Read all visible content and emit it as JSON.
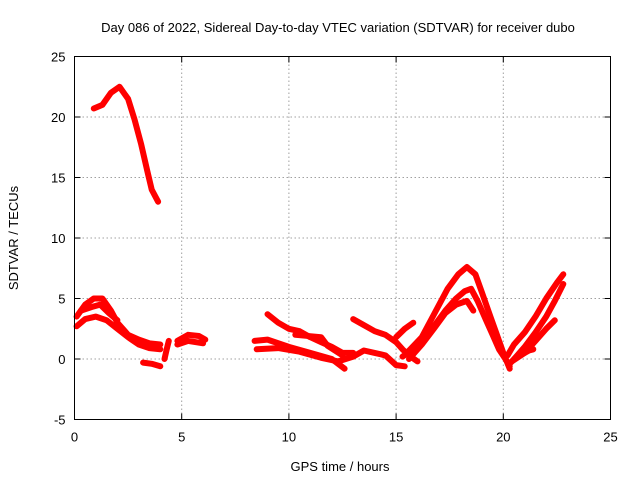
{
  "chart_data": {
    "type": "line",
    "title": "Day 086 of 2022, Sidereal Day-to-day VTEC variation (SDTVAR) for receiver dubo",
    "xlabel": "GPS time / hours",
    "ylabel": "SDTVAR / TECUs",
    "xlim": [
      0,
      25
    ],
    "ylim": [
      -5,
      25
    ],
    "xticks": [
      "0",
      "5",
      "10",
      "15",
      "20",
      "25"
    ],
    "yticks": [
      "-5",
      "0",
      "5",
      "10",
      "15",
      "20",
      "25"
    ],
    "grid": true,
    "series_color": "#ff0000",
    "series": [
      {
        "name": "seg-high-peak",
        "points": [
          [
            0.9,
            20.7
          ],
          [
            1.3,
            21.0
          ],
          [
            1.7,
            22.0
          ],
          [
            2.1,
            22.5
          ],
          [
            2.5,
            21.5
          ],
          [
            2.8,
            19.8
          ],
          [
            3.1,
            17.8
          ],
          [
            3.4,
            15.5
          ],
          [
            3.6,
            14.0
          ],
          [
            3.9,
            13.0
          ]
        ]
      },
      {
        "name": "seg-early-upper",
        "points": [
          [
            0.1,
            3.5
          ],
          [
            0.5,
            4.5
          ],
          [
            0.9,
            5.0
          ],
          [
            1.3,
            5.0
          ],
          [
            1.7,
            4.0
          ],
          [
            2.0,
            3.0
          ],
          [
            2.5,
            2.0
          ],
          [
            3.0,
            1.6
          ],
          [
            3.5,
            1.3
          ],
          [
            4.0,
            1.2
          ]
        ]
      },
      {
        "name": "seg-early-lower",
        "points": [
          [
            0.1,
            2.7
          ],
          [
            0.5,
            3.3
          ],
          [
            1.0,
            3.5
          ],
          [
            1.5,
            3.2
          ],
          [
            2.0,
            2.5
          ],
          [
            2.5,
            1.8
          ],
          [
            3.0,
            1.2
          ],
          [
            3.5,
            0.9
          ],
          [
            4.0,
            0.8
          ]
        ]
      },
      {
        "name": "seg-early-mid",
        "points": [
          [
            0.3,
            4.0
          ],
          [
            0.8,
            4.3
          ],
          [
            1.2,
            4.5
          ],
          [
            1.6,
            3.8
          ],
          [
            2.0,
            3.2
          ]
        ]
      },
      {
        "name": "seg-dip",
        "points": [
          [
            3.2,
            -0.3
          ],
          [
            3.6,
            -0.4
          ],
          [
            4.0,
            -0.6
          ]
        ]
      },
      {
        "name": "seg-rise",
        "points": [
          [
            4.2,
            0.0
          ],
          [
            4.3,
            0.8
          ],
          [
            4.4,
            1.5
          ]
        ]
      },
      {
        "name": "seg-mid",
        "points": [
          [
            4.8,
            1.5
          ],
          [
            5.3,
            2.0
          ],
          [
            5.8,
            1.9
          ],
          [
            6.1,
            1.6
          ]
        ]
      },
      {
        "name": "seg-mid2",
        "points": [
          [
            4.8,
            1.2
          ],
          [
            5.3,
            1.5
          ],
          [
            6.0,
            1.3
          ]
        ]
      },
      {
        "name": "seg-a",
        "points": [
          [
            8.4,
            1.5
          ],
          [
            9.0,
            1.6
          ],
          [
            10.0,
            1.0
          ],
          [
            11.0,
            0.5
          ],
          [
            12.0,
            0.0
          ],
          [
            12.6,
            -0.8
          ]
        ]
      },
      {
        "name": "seg-b",
        "points": [
          [
            8.5,
            0.8
          ],
          [
            9.5,
            0.9
          ],
          [
            10.5,
            0.6
          ],
          [
            11.5,
            0.1
          ],
          [
            12.3,
            -0.2
          ],
          [
            13.0,
            0.2
          ],
          [
            13.5,
            0.7
          ],
          [
            14.0,
            0.5
          ],
          [
            14.5,
            0.3
          ],
          [
            15.0,
            -0.5
          ],
          [
            15.4,
            -0.6
          ]
        ]
      },
      {
        "name": "seg-c",
        "points": [
          [
            9.0,
            3.7
          ],
          [
            9.5,
            3.0
          ],
          [
            10.0,
            2.5
          ],
          [
            10.5,
            2.3
          ],
          [
            11.0,
            1.8
          ],
          [
            11.5,
            1.4
          ],
          [
            12.0,
            1.0
          ],
          [
            12.5,
            0.5
          ],
          [
            13.0,
            0.5
          ]
        ]
      },
      {
        "name": "seg-d",
        "points": [
          [
            10.3,
            2.0
          ],
          [
            11.5,
            1.8
          ],
          [
            11.8,
            1.1
          ],
          [
            12.5,
            0.3
          ]
        ]
      },
      {
        "name": "seg-e",
        "points": [
          [
            13.0,
            3.3
          ],
          [
            13.5,
            2.8
          ],
          [
            14.0,
            2.3
          ],
          [
            14.5,
            2.0
          ],
          [
            15.0,
            1.4
          ],
          [
            15.3,
            0.8
          ],
          [
            15.6,
            0.3
          ],
          [
            16.0,
            -0.2
          ]
        ]
      },
      {
        "name": "seg-f",
        "points": [
          [
            15.0,
            1.8
          ],
          [
            15.4,
            2.5
          ],
          [
            15.8,
            3.0
          ]
        ]
      },
      {
        "name": "seg-g",
        "points": [
          [
            15.3,
            0.2
          ],
          [
            15.8,
            0.8
          ],
          [
            16.3,
            1.5
          ],
          [
            16.8,
            2.8
          ],
          [
            17.3,
            4.0
          ],
          [
            17.8,
            5.0
          ],
          [
            18.2,
            5.6
          ],
          [
            18.5,
            5.8
          ],
          [
            18.8,
            4.8
          ],
          [
            19.2,
            3.2
          ],
          [
            19.5,
            2.0
          ],
          [
            19.8,
            0.8
          ],
          [
            20.1,
            0.0
          ],
          [
            20.3,
            -0.6
          ]
        ]
      },
      {
        "name": "seg-h",
        "points": [
          [
            15.5,
            0.5
          ],
          [
            16.2,
            1.8
          ],
          [
            16.8,
            3.8
          ],
          [
            17.4,
            5.8
          ],
          [
            17.9,
            7.0
          ],
          [
            18.3,
            7.6
          ],
          [
            18.7,
            7.0
          ],
          [
            19.0,
            5.5
          ],
          [
            19.4,
            3.5
          ],
          [
            19.7,
            2.0
          ],
          [
            20.0,
            0.5
          ],
          [
            20.3,
            -0.8
          ]
        ]
      },
      {
        "name": "seg-i",
        "points": [
          [
            15.6,
            0.0
          ],
          [
            16.2,
            1.2
          ],
          [
            16.8,
            2.6
          ],
          [
            17.3,
            3.8
          ],
          [
            17.8,
            4.5
          ],
          [
            18.3,
            4.8
          ],
          [
            18.6,
            4.0
          ]
        ]
      },
      {
        "name": "seg-j",
        "points": [
          [
            20.3,
            -0.4
          ],
          [
            20.6,
            0.2
          ],
          [
            21.0,
            1.0
          ],
          [
            21.5,
            2.2
          ],
          [
            22.0,
            3.5
          ],
          [
            22.4,
            4.8
          ],
          [
            22.8,
            6.2
          ]
        ]
      },
      {
        "name": "seg-k",
        "points": [
          [
            20.2,
            0.3
          ],
          [
            20.5,
            1.2
          ],
          [
            21.0,
            2.2
          ],
          [
            21.5,
            3.5
          ],
          [
            22.0,
            5.0
          ],
          [
            22.5,
            6.3
          ],
          [
            22.8,
            7.0
          ]
        ]
      },
      {
        "name": "seg-l",
        "points": [
          [
            20.4,
            -0.2
          ],
          [
            21.0,
            0.5
          ],
          [
            21.5,
            1.5
          ],
          [
            22.0,
            2.5
          ],
          [
            22.4,
            3.2
          ]
        ]
      },
      {
        "name": "seg-m",
        "points": [
          [
            21.0,
            0.5
          ],
          [
            21.2,
            0.7
          ],
          [
            21.4,
            0.8
          ]
        ]
      }
    ]
  }
}
